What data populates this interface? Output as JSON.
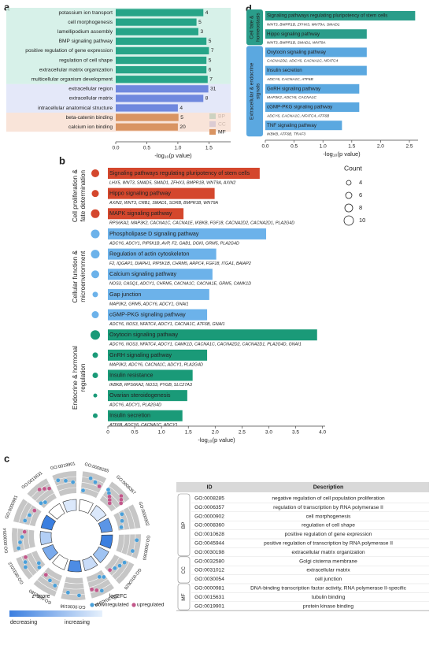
{
  "chart_data": [
    {
      "panel": "a",
      "type": "bar",
      "xlabel": "-log₁₀(p value)",
      "xlim": [
        0,
        1.85
      ],
      "xticks": [
        {
          "value": 0,
          "label": "0.0"
        },
        0.5,
        {
          "value": 1,
          "label": "1.0"
        },
        1.5
      ],
      "groups": [
        {
          "name": "BP",
          "color": "#27a488",
          "band_color": "#cdeee3",
          "items": [
            {
              "name": "potassium ion transport",
              "value": 1.41,
              "count": 4
            },
            {
              "name": "cell morphogenesis",
              "value": 1.3,
              "count": 5
            },
            {
              "name": "lamellipodium assembly",
              "value": 1.33,
              "count": 3
            },
            {
              "name": "BMP signaling pathway",
              "value": 1.46,
              "count": 5
            },
            {
              "name": "positive regulation of gene expression",
              "value": 1.5,
              "count": 7
            },
            {
              "name": "regulation of cell shape",
              "value": 1.46,
              "count": 5
            },
            {
              "name": "extracellular matrix organization",
              "value": 1.46,
              "count": 6
            },
            {
              "name": "multicellular organism development",
              "value": 1.48,
              "count": 7
            }
          ]
        },
        {
          "name": "CC",
          "color": "#6f88de",
          "band_color": "#dde2f8",
          "items": [
            {
              "name": "extracellular region",
              "value": 1.49,
              "count": 31
            },
            {
              "name": "extracellular matrix",
              "value": 1.41,
              "count": 8
            },
            {
              "name": "intracellular anatomical structure",
              "value": 1.0,
              "count": 4
            }
          ]
        },
        {
          "name": "MF",
          "color": "#d99462",
          "band_color": "#f8ddd0",
          "items": [
            {
              "name": "beta-catenin binding",
              "value": 1.01,
              "count": 5
            },
            {
              "name": "calcium ion binding",
              "value": 1.0,
              "count": 20
            }
          ]
        }
      ]
    },
    {
      "panel": "d",
      "type": "enrichment",
      "xlabel": "-log₁₀(p value)",
      "xlim": [
        0,
        2.65
      ],
      "xticks": [
        {
          "value": 0,
          "label": "0.0"
        },
        0.5,
        {
          "value": 1,
          "label": "1.0"
        },
        1.5,
        {
          "value": 2,
          "label": "2.0"
        },
        2.5
      ],
      "groups": [
        {
          "label_lines": [
            "Cell fate &",
            "homeostasis"
          ],
          "color": "#2a9d8a",
          "items": [
            {
              "name": "Signaling pathways regulating pluripotency of stem cells",
              "genes": "WNT3, BMPR1B, ZFHX3, WNT9A, SMAD1",
              "value": 2.6
            },
            {
              "name": "Hippo signaling pathway",
              "genes": "WNT3, BMPR1B, SMAD1, WNT9A",
              "value": 1.76
            }
          ]
        },
        {
          "label_lines": [
            "Extracellular & endocrine",
            "signals"
          ],
          "color": "#5ba8e0",
          "items": [
            {
              "name": "Oxytocin signaling pathway",
              "genes": "CACNA2D2, ADCY6, CACNA1C, NFATC4",
              "value": 1.76
            },
            {
              "name": "Insulin secretion",
              "genes": "ADCY6, CACNA1C, ATF6B",
              "value": 1.76
            },
            {
              "name": "GnRH signaling pathway",
              "genes": "MAP3K2, ADCY6, CACNA1C",
              "value": 1.63
            },
            {
              "name": "cGMP-PKG signaling pathway",
              "genes": "ADCY6, CACNA1C, NFATC4, ATF6B",
              "value": 1.63
            },
            {
              "name": "TNF signaling pathway",
              "genes": "IKBKB, ATF6B, TRAF3",
              "value": 1.33
            }
          ]
        }
      ]
    },
    {
      "panel": "b",
      "type": "enrichment",
      "xlabel": "-log₁₀(p value)",
      "xlim": [
        0,
        4.05
      ],
      "xticks": [
        0,
        0.5,
        {
          "value": 1,
          "label": "1.0"
        },
        1.5,
        {
          "value": 2,
          "label": "2.0"
        },
        2.5,
        {
          "value": 3,
          "label": "3.0"
        },
        3.5,
        {
          "value": 4,
          "label": "4.0"
        }
      ],
      "size_legend": {
        "title": "Count",
        "values": [
          4,
          6,
          8,
          10
        ]
      },
      "groups": [
        {
          "label_lines": [
            "Cell proliferation &",
            "fate determination"
          ],
          "color": "#d4472d",
          "items": [
            {
              "name": "Signaling pathways regulating pluripotency of stem cells",
              "genes": "LHX5, WNT3, SMAD5, SMAD1, ZFHX3, BMPR1B, WNT9A, AXIN2",
              "value": 2.83,
              "count": 8
            },
            {
              "name": "Hippo signaling pathway",
              "genes": "AXIN2, WNT3, CRB1, SMAD1, SORB, BMPR1B, WNT9A",
              "value": 1.99,
              "count": 7
            },
            {
              "name": "MAPK signaling pathway",
              "genes": "RPS6KA2, MAP3K2, CACNA1C, CACNA1E, IKBKB, FGF18, CACNA2D2, CACNA2D1, PLA2G4D",
              "value": 1.41,
              "count": 9
            }
          ]
        },
        {
          "label_lines": [
            "Cellular function &",
            "microenvironment"
          ],
          "color": "#6cb2ea",
          "items": [
            {
              "name": "Phospholipase D signaling pathway",
              "genes": "ADCY6, ADCY1, PIP5K1B, AVP, F2, GAB1, DGKI, GRM5, PLA2G4D",
              "value": 2.95,
              "count": 9
            },
            {
              "name": "Regulation of actin cytoskeleton",
              "genes": "F2, IQGAP1, DIAPH1, PIP5K1B, CHRM5, ARPC4, FGF18, ITGA1, BAIAP2",
              "value": 2.02,
              "count": 9
            },
            {
              "name": "Calcium signaling pathway",
              "genes": "NOS3, CASQ1, ADCY1, CHRM5, CACNA1C, CACNA1E, GRM5, CAMK1D",
              "value": 1.95,
              "count": 8
            },
            {
              "name": "Gap junction",
              "genes": "MAP3K2, GRM5, ADCY6, ADCY1, GNAI1",
              "value": 1.89,
              "count": 5
            },
            {
              "name": "cGMP-PKG signaling pathway",
              "genes": "ADCY6, NOS3, NFATC4, ADCY1, CACNA1C, ATF6B, GNAI1",
              "value": 1.85,
              "count": 7
            }
          ]
        },
        {
          "label_lines": [
            "Endocrine & hormonal",
            "regulation"
          ],
          "color": "#1a9a78",
          "items": [
            {
              "name": "Oxytocin signaling pathway",
              "genes": "ADCY6, NOS3, NFATC4, ADCY1, CAMK1D, CACNA1C, CACNA2D2, CACNA2D1, PLA2G4D, GNAI1",
              "value": 3.9,
              "count": 10
            },
            {
              "name": "GnRH signaling pathway",
              "genes": "MAP3K2, ADCY6, CACNA1C, ADCY1, PLA2G4D",
              "value": 1.85,
              "count": 5
            },
            {
              "name": "Insulin resistance",
              "genes": "IKBKB, RPS6KA2, NOS3, PYGB, SLC27A3",
              "value": 1.58,
              "count": 5
            },
            {
              "name": "Ovarian steroidogenesis",
              "genes": "ADCY6, ADCY1, PLA2G4D",
              "value": 1.48,
              "count": 3
            },
            {
              "name": "Insulin secretion",
              "genes": "ATF6B, ADCY6, CACNA1C, ADCY1",
              "value": 1.39,
              "count": 4
            }
          ]
        }
      ]
    },
    {
      "panel": "c",
      "type": "circos",
      "legend": {
        "zscore": "z-score",
        "log2fc": "log2FC",
        "decreasing": "decreasing",
        "increasing": "increasing",
        "down": {
          "name": "downregulated",
          "color": "#4a9fd8"
        },
        "up": {
          "name": "upregulated",
          "color": "#c2578a"
        },
        "gradient": [
          "#3b7fe0",
          "#e6f0fc"
        ]
      },
      "terms": [
        {
          "id": "GO:0008285",
          "down": 3,
          "up": 1,
          "inner_color": "#ffffff"
        },
        {
          "id": "GO:0006357",
          "down": 2,
          "up": 6,
          "inner_color": "#dbe8fb"
        },
        {
          "id": "GO:0000902",
          "down": 3,
          "up": 0,
          "inner_color": "#5b95e6"
        },
        {
          "id": "GO:0008360",
          "down": 2,
          "up": 0,
          "inner_color": "#3b7fe0"
        },
        {
          "id": "GO:0010628",
          "down": 3,
          "up": 1,
          "inner_color": "#9fc3f2"
        },
        {
          "id": "GO:0045944",
          "down": 3,
          "up": 2,
          "inner_color": "#c9dcf8"
        },
        {
          "id": "GO:0030198",
          "down": 2,
          "up": 0,
          "inner_color": "#4d8ce4"
        },
        {
          "id": "GO:0032580",
          "down": 2,
          "up": 1,
          "inner_color": "#ffffff"
        },
        {
          "id": "GO:0031012",
          "down": 4,
          "up": 1,
          "inner_color": "#7aaaec"
        },
        {
          "id": "GO:0030054",
          "down": 3,
          "up": 1,
          "inner_color": "#b3cff5"
        },
        {
          "id": "GO:0000981",
          "down": 2,
          "up": 1,
          "inner_color": "#3b7fe0"
        },
        {
          "id": "GO:0015631",
          "down": 2,
          "up": 3,
          "inner_color": "#ffffff"
        },
        {
          "id": "GO:0019901",
          "down": 3,
          "up": 0,
          "inner_color": "#dbe8fb"
        }
      ],
      "table": {
        "columns": [
          "ID",
          "Description"
        ],
        "groups": [
          {
            "name": "BP",
            "rows": [
              [
                "GO:0008285",
                "negative regulation of cell population proliferation"
              ],
              [
                "GO:0006357",
                "regulation of transcription by RNA polymerase II"
              ],
              [
                "GO:0000902",
                "cell morphogenesis"
              ],
              [
                "GO:0008360",
                "regulation of cell shape"
              ],
              [
                "GO:0010628",
                "positive regulation of gene expression"
              ],
              [
                "GO:0045944",
                "positive regulation of transcription by RNA polymerase II"
              ],
              [
                "GO:0030198",
                "extracellular matrix organization"
              ]
            ]
          },
          {
            "name": "CC",
            "rows": [
              [
                "GO:0032580",
                "Golgi cisterna membrane"
              ],
              [
                "GO:0031012",
                "extracellular matrix"
              ],
              [
                "GO:0030054",
                "cell junction"
              ]
            ]
          },
          {
            "name": "MF",
            "rows": [
              [
                "GO:0000981",
                "DNA-binding transcription factor activity, RNA polymerase II-specific"
              ],
              [
                "GO:0015631",
                "tubulin binding"
              ],
              [
                "GO:0019901",
                "protein kinase binding"
              ]
            ]
          }
        ]
      }
    }
  ]
}
